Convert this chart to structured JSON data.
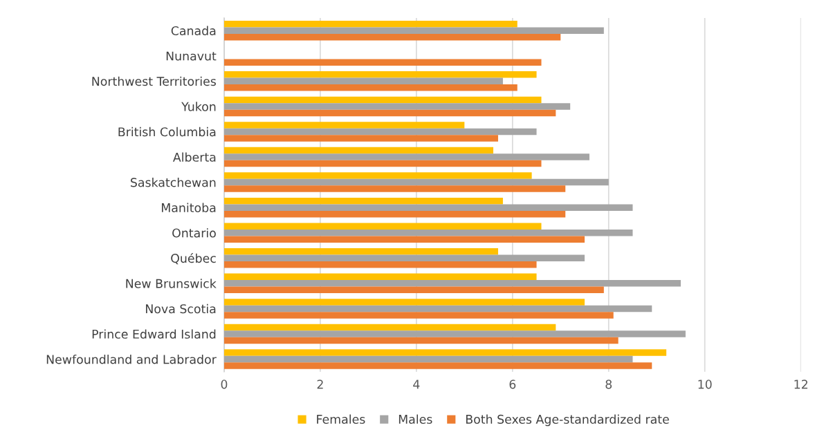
{
  "chart_data": {
    "type": "bar",
    "orientation": "horizontal",
    "categories": [
      "Canada",
      "Nunavut",
      "Northwest Territories",
      "Yukon",
      "British Columbia",
      "Alberta",
      "Saskatchewan",
      "Manitoba",
      "Ontario",
      "Québec",
      "New Brunswick",
      "Nova Scotia",
      "Prince Edward Island",
      "Newfoundland and Labrador"
    ],
    "series": [
      {
        "name": "Females",
        "color": "#ffc000",
        "values": [
          6.1,
          null,
          6.5,
          6.6,
          5.0,
          5.6,
          6.4,
          5.8,
          6.6,
          5.7,
          6.5,
          7.5,
          6.9,
          9.2
        ]
      },
      {
        "name": "Males",
        "color": "#a5a5a5",
        "values": [
          7.9,
          null,
          5.8,
          7.2,
          6.5,
          7.6,
          8.0,
          8.5,
          8.5,
          7.5,
          9.5,
          8.9,
          9.6,
          8.5
        ]
      },
      {
        "name": "Both Sexes Age-standardized rate",
        "color": "#ed7d31",
        "values": [
          7.0,
          6.6,
          6.1,
          6.9,
          5.7,
          6.6,
          7.1,
          7.1,
          7.5,
          6.5,
          7.9,
          8.1,
          8.2,
          8.9
        ]
      }
    ],
    "xlim": [
      0,
      12
    ],
    "xticks": [
      0,
      2,
      4,
      6,
      8,
      10,
      12
    ],
    "grid": "x",
    "legend": "bottom"
  }
}
